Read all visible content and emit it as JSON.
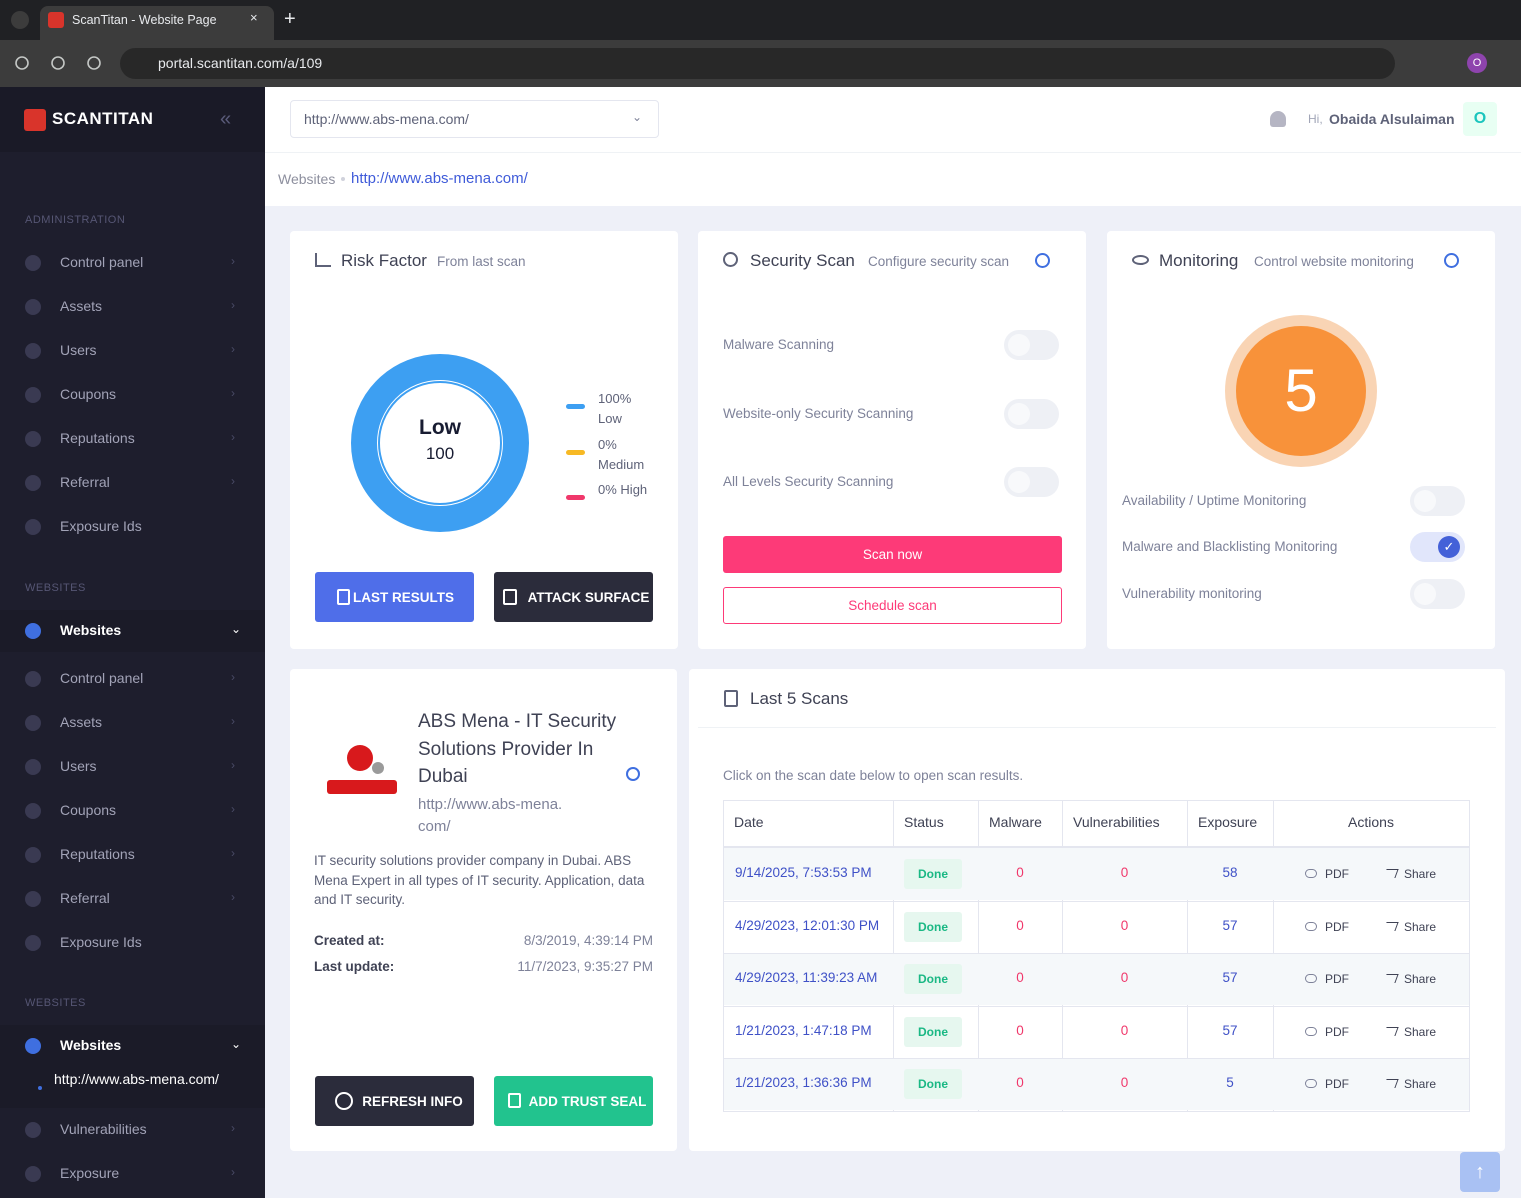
{
  "browser": {
    "tab_title": "ScanTitan - Website Page",
    "url": "portal.scantitan.com/a/109",
    "profile": "O"
  },
  "sidebar": {
    "brand": "SCANTITAN",
    "sections": [
      {
        "heading": "ADMINISTRATION",
        "items": [
          "Control panel",
          "Assets",
          "Users",
          "Coupons",
          "Reputations",
          "Referral",
          "Exposure Ids"
        ]
      },
      {
        "heading": "WEBSITES",
        "items": [
          "Websites",
          "Control panel",
          "Assets",
          "Users",
          "Coupons",
          "Reputations",
          "Referral",
          "Exposure Ids"
        ]
      },
      {
        "heading": "WEBSITES",
        "items": [
          "Websites",
          "http://www.abs-mena.com/",
          "Vulnerabilities",
          "Exposure"
        ]
      }
    ]
  },
  "header": {
    "website_select": "http://www.abs-mena.com/",
    "greeting": "Hi,",
    "user": "Obaida Alsulaiman",
    "avatar": "O"
  },
  "breadcrumb": [
    "Websites",
    "http://www.abs-mena.com/"
  ],
  "risk_factor": {
    "title": "Risk Factor",
    "subtitle": "From last scan",
    "level": "Low",
    "score": 100,
    "chart": {
      "type": "pie",
      "categories": [
        "Low",
        "Medium",
        "High"
      ],
      "values": [
        100,
        0,
        0
      ],
      "value_labels": [
        "100%",
        "0%",
        "0%"
      ],
      "colors": [
        "#3d9ff2",
        "#f7b924",
        "#f0386b"
      ]
    },
    "buttons": [
      "LAST RESULTS",
      "ATTACK SURFACE"
    ]
  },
  "security_scan": {
    "title": "Security Scan",
    "subtitle": "Configure security scan",
    "options": [
      {
        "label": "Malware Scanning",
        "enabled": false
      },
      {
        "label": "Website-only Security Scanning",
        "enabled": false
      },
      {
        "label": "All Levels Security Scanning",
        "enabled": false
      }
    ],
    "buttons": [
      "Scan now",
      "Schedule scan"
    ]
  },
  "monitoring": {
    "title": "Monitoring",
    "subtitle": "Control website monitoring",
    "score": 5,
    "options": [
      {
        "label": "Availability / Uptime Monitoring",
        "enabled": false
      },
      {
        "label": "Malware and Blacklisting Monitoring",
        "enabled": true
      },
      {
        "label": "Vulnerability monitoring",
        "enabled": false
      }
    ]
  },
  "website_info": {
    "name": "ABS Mena - IT Security Solutions Provider In Dubai",
    "url": "http://www.abs-mena.com/",
    "description": "IT security solutions provider company in Dubai. ABS Mena Expert in all types of IT security. Application, data and IT security.",
    "created_label": "Created at:",
    "created": "8/3/2019, 4:39:14 PM",
    "updated_label": "Last update:",
    "updated": "11/7/2023, 9:35:27 PM",
    "buttons": [
      "REFRESH INFO",
      "ADD TRUST SEAL"
    ]
  },
  "last_scans": {
    "title": "Last 5 Scans",
    "hint": "Click on the scan date below to open scan results.",
    "columns": [
      "Date",
      "Status",
      "Malware",
      "Vulnerabilities",
      "Exposure",
      "Actions"
    ],
    "actions": [
      "PDF",
      "Share"
    ],
    "rows": [
      {
        "date": "9/14/2025, 7:53:53 PM",
        "status": "Done",
        "malware": 0,
        "vulnerabilities": 0,
        "exposure": 58
      },
      {
        "date": "4/29/2023, 12:01:30 PM",
        "status": "Done",
        "malware": 0,
        "vulnerabilities": 0,
        "exposure": 57
      },
      {
        "date": "4/29/2023, 11:39:23 AM",
        "status": "Done",
        "malware": 0,
        "vulnerabilities": 0,
        "exposure": 57
      },
      {
        "date": "1/21/2023, 1:47:18 PM",
        "status": "Done",
        "malware": 0,
        "vulnerabilities": 0,
        "exposure": 57
      },
      {
        "date": "1/21/2023, 1:36:36 PM",
        "status": "Done",
        "malware": 0,
        "vulnerabilities": 0,
        "exposure": 5
      }
    ]
  }
}
